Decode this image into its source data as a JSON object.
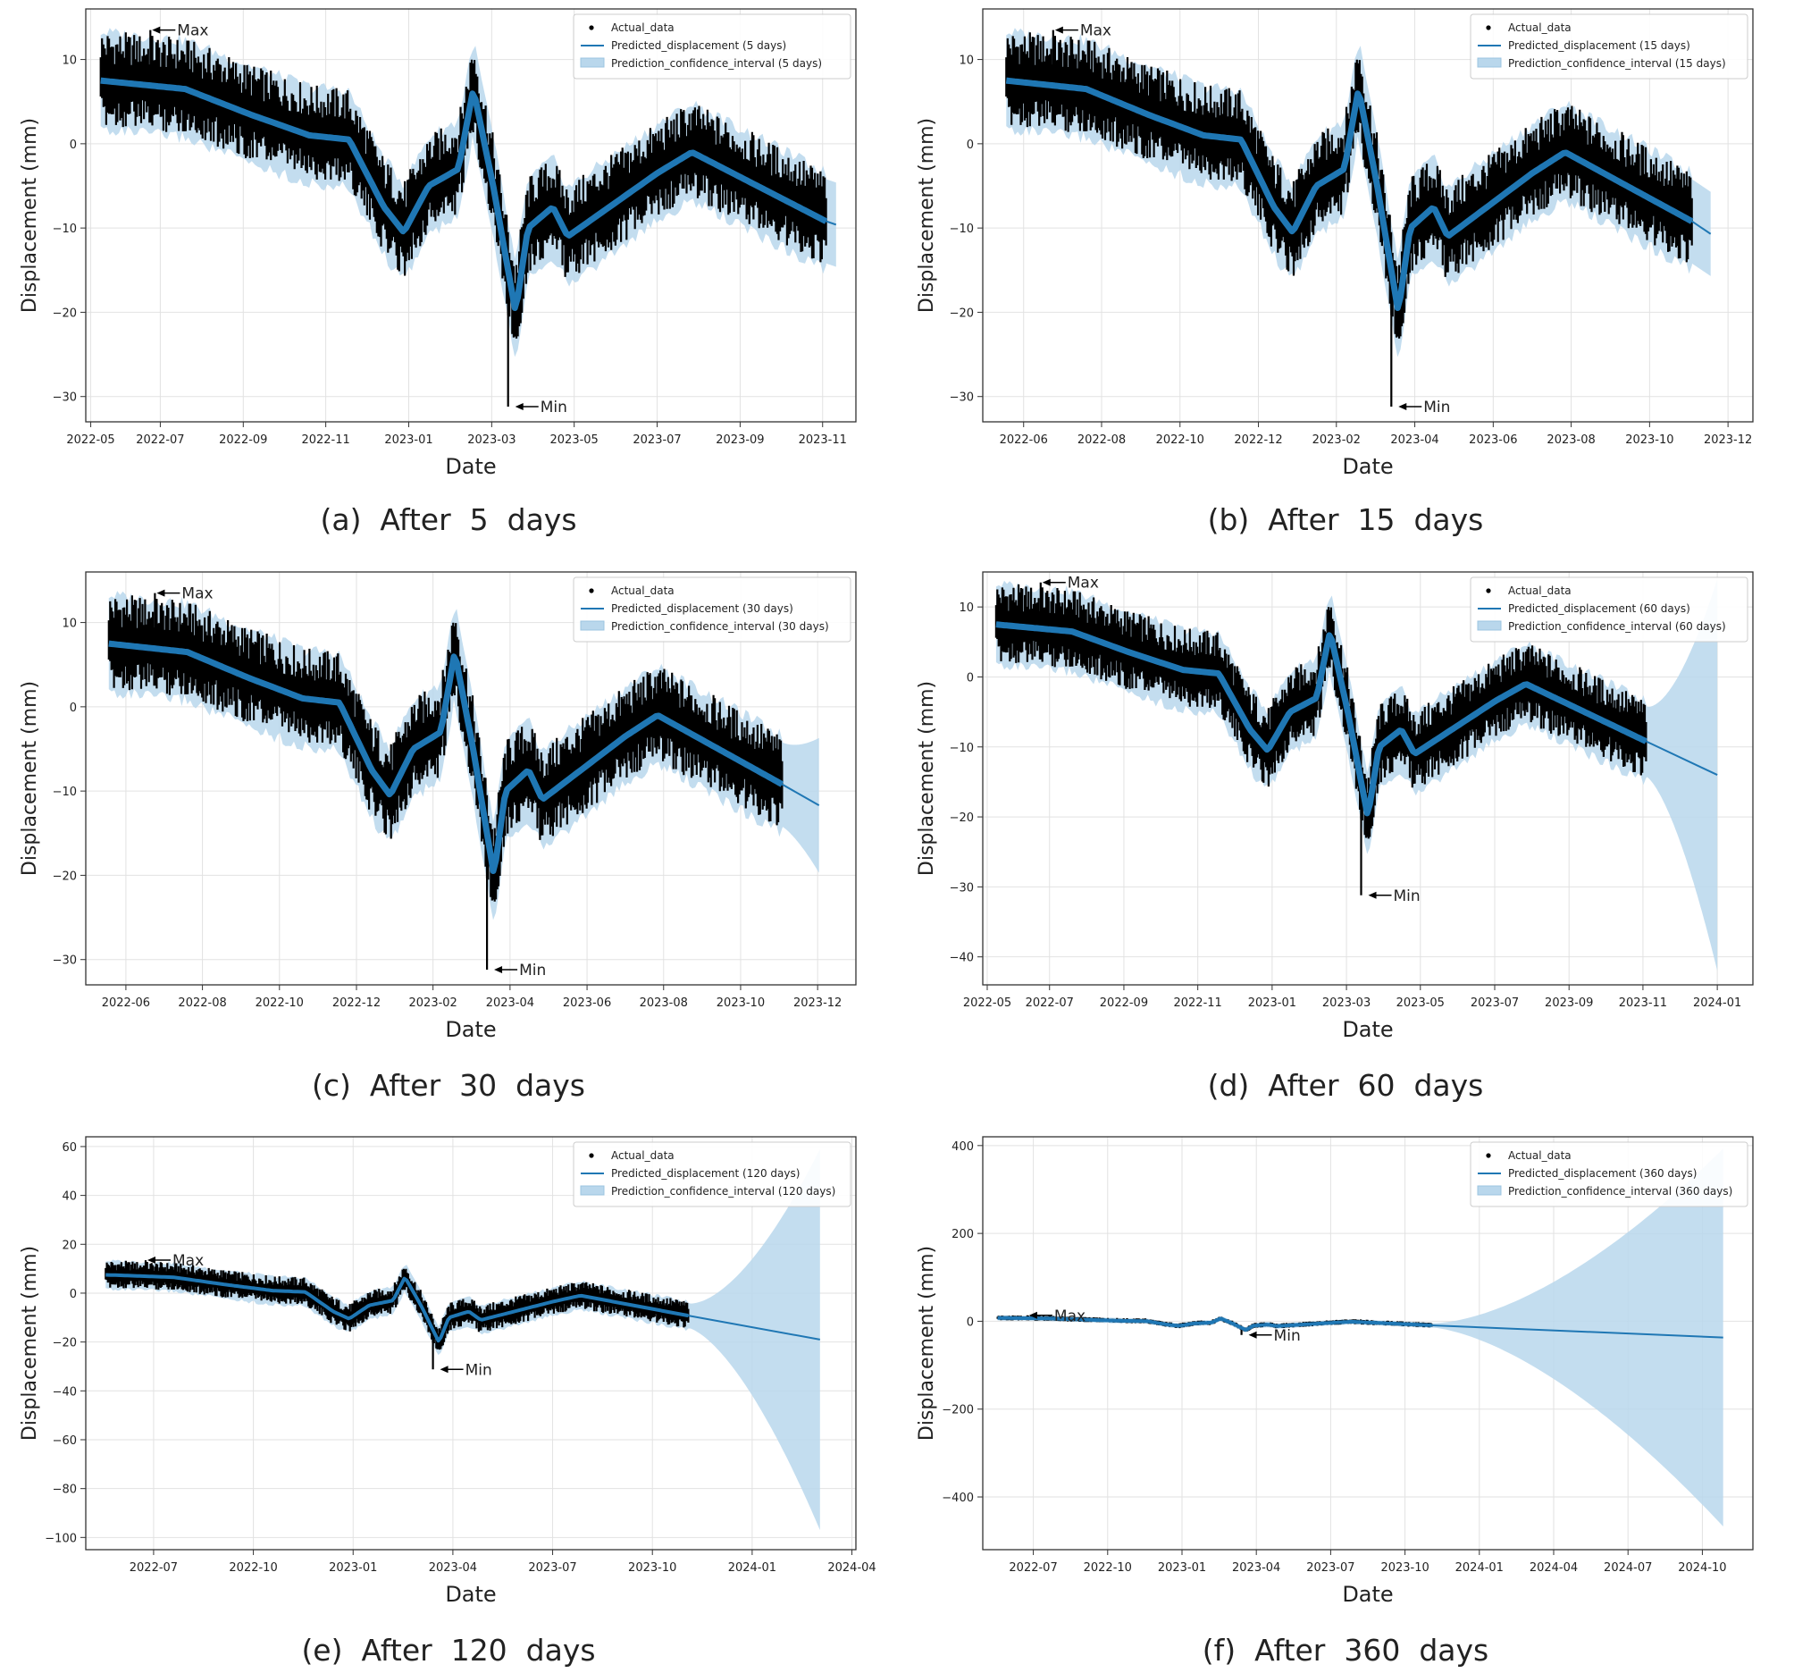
{
  "figure": {
    "xlabel": "Date",
    "ylabel": "Displacement (mm)",
    "max_label": "Max",
    "min_label": "Min",
    "actual_label": "Actual_data",
    "colors": {
      "band": "#b9d7ec",
      "line": "#1f77b4",
      "actual": "#000000",
      "grid": "#e2e2e2"
    }
  },
  "chart_data": [
    {
      "id": "a",
      "caption": "(a)  After  5  days",
      "type": "line",
      "title": "",
      "xlabel": "Date",
      "ylabel": "Displacement (mm)",
      "xlim": [
        2022.35,
        2023.9
      ],
      "ylim": [
        -33,
        16
      ],
      "xticks": [
        {
          "v": 2022.36,
          "l": "2022-05"
        },
        {
          "v": 2022.5,
          "l": "2022-07"
        },
        {
          "v": 2022.667,
          "l": "2022-09"
        },
        {
          "v": 2022.833,
          "l": "2022-11"
        },
        {
          "v": 2023.0,
          "l": "2023-01"
        },
        {
          "v": 2023.167,
          "l": "2023-03"
        },
        {
          "v": 2023.333,
          "l": "2023-05"
        },
        {
          "v": 2023.5,
          "l": "2023-07"
        },
        {
          "v": 2023.667,
          "l": "2023-09"
        },
        {
          "v": 2023.833,
          "l": "2023-11"
        }
      ],
      "yticks": [
        {
          "v": 10,
          "l": "10"
        },
        {
          "v": 0,
          "l": "0"
        },
        {
          "v": -10,
          "l": "−10"
        },
        {
          "v": -20,
          "l": "−20"
        },
        {
          "v": -30,
          "l": "−30"
        }
      ],
      "legend": {
        "actual": "Actual_data",
        "predicted": "Predicted_displacement (5 days)",
        "interval": "Prediction_confidence_interval (5 days)",
        "position": "top-right"
      },
      "forecast_end": 2023.86,
      "forecast_end_value": -9.6,
      "band_half_end": 5.0,
      "max_point": {
        "x": 2022.48,
        "y": 13.5
      },
      "min_point": {
        "x": 2023.2,
        "y": -31.2
      }
    },
    {
      "id": "b",
      "caption": "(b)  After  15  days",
      "type": "line",
      "title": "",
      "xlabel": "Date",
      "ylabel": "Displacement (mm)",
      "xlim": [
        2022.33,
        2023.97
      ],
      "ylim": [
        -33,
        16
      ],
      "xticks": [
        {
          "v": 2022.417,
          "l": "2022-06"
        },
        {
          "v": 2022.583,
          "l": "2022-08"
        },
        {
          "v": 2022.75,
          "l": "2022-10"
        },
        {
          "v": 2022.917,
          "l": "2022-12"
        },
        {
          "v": 2023.083,
          "l": "2023-02"
        },
        {
          "v": 2023.25,
          "l": "2023-04"
        },
        {
          "v": 2023.417,
          "l": "2023-06"
        },
        {
          "v": 2023.583,
          "l": "2023-08"
        },
        {
          "v": 2023.75,
          "l": "2023-10"
        },
        {
          "v": 2023.917,
          "l": "2023-12"
        }
      ],
      "yticks": [
        {
          "v": 10,
          "l": "10"
        },
        {
          "v": 0,
          "l": "0"
        },
        {
          "v": -10,
          "l": "−10"
        },
        {
          "v": -20,
          "l": "−20"
        },
        {
          "v": -30,
          "l": "−30"
        }
      ],
      "legend": {
        "actual": "Actual_data",
        "predicted": "Predicted_displacement (15 days)",
        "interval": "Prediction_confidence_interval (15 days)",
        "position": "top-right"
      },
      "forecast_end": 2023.88,
      "forecast_end_value": -10.7,
      "band_half_end": 5.0,
      "max_point": {
        "x": 2022.48,
        "y": 13.5
      },
      "min_point": {
        "x": 2023.2,
        "y": -31.2
      }
    },
    {
      "id": "c",
      "caption": "(c)  After  30  days",
      "type": "line",
      "title": "",
      "xlabel": "Date",
      "ylabel": "Displacement (mm)",
      "xlim": [
        2022.33,
        2024.0
      ],
      "ylim": [
        -33,
        16
      ],
      "xticks": [
        {
          "v": 2022.417,
          "l": "2022-06"
        },
        {
          "v": 2022.583,
          "l": "2022-08"
        },
        {
          "v": 2022.75,
          "l": "2022-10"
        },
        {
          "v": 2022.917,
          "l": "2022-12"
        },
        {
          "v": 2023.083,
          "l": "2023-02"
        },
        {
          "v": 2023.25,
          "l": "2023-04"
        },
        {
          "v": 2023.417,
          "l": "2023-06"
        },
        {
          "v": 2023.583,
          "l": "2023-08"
        },
        {
          "v": 2023.75,
          "l": "2023-10"
        },
        {
          "v": 2023.917,
          "l": "2023-12"
        }
      ],
      "yticks": [
        {
          "v": 10,
          "l": "10"
        },
        {
          "v": 0,
          "l": "0"
        },
        {
          "v": -10,
          "l": "−10"
        },
        {
          "v": -20,
          "l": "−20"
        },
        {
          "v": -30,
          "l": "−30"
        }
      ],
      "legend": {
        "actual": "Actual_data",
        "predicted": "Predicted_displacement (30 days)",
        "interval": "Prediction_confidence_interval (30 days)",
        "position": "top-right"
      },
      "forecast_end": 2023.92,
      "forecast_end_value": -11.7,
      "band_half_end": 8.0,
      "max_point": {
        "x": 2022.48,
        "y": 13.5
      },
      "min_point": {
        "x": 2023.2,
        "y": -31.2
      }
    },
    {
      "id": "d",
      "caption": "(d)  After  60  days",
      "type": "line",
      "title": "",
      "xlabel": "Date",
      "ylabel": "Displacement (mm)",
      "xlim": [
        2022.35,
        2024.08
      ],
      "ylim": [
        -44,
        15
      ],
      "xticks": [
        {
          "v": 2022.36,
          "l": "2022-05"
        },
        {
          "v": 2022.5,
          "l": "2022-07"
        },
        {
          "v": 2022.667,
          "l": "2022-09"
        },
        {
          "v": 2022.833,
          "l": "2022-11"
        },
        {
          "v": 2023.0,
          "l": "2023-01"
        },
        {
          "v": 2023.167,
          "l": "2023-03"
        },
        {
          "v": 2023.333,
          "l": "2023-05"
        },
        {
          "v": 2023.5,
          "l": "2023-07"
        },
        {
          "v": 2023.667,
          "l": "2023-09"
        },
        {
          "v": 2023.833,
          "l": "2023-11"
        },
        {
          "v": 2024.0,
          "l": "2024-01"
        }
      ],
      "yticks": [
        {
          "v": 10,
          "l": "10"
        },
        {
          "v": 0,
          "l": "0"
        },
        {
          "v": -10,
          "l": "−10"
        },
        {
          "v": -20,
          "l": "−20"
        },
        {
          "v": -30,
          "l": "−30"
        },
        {
          "v": -40,
          "l": "−40"
        }
      ],
      "legend": {
        "actual": "Actual_data",
        "predicted": "Predicted_displacement (60 days)",
        "interval": "Prediction_confidence_interval (60 days)",
        "position": "top-right"
      },
      "forecast_end": 2024.0,
      "forecast_end_value": -14.0,
      "band_half_end": 28.0,
      "max_point": {
        "x": 2022.48,
        "y": 13.5
      },
      "min_point": {
        "x": 2023.2,
        "y": -31.2
      }
    },
    {
      "id": "e",
      "caption": "(e)  After  120  days",
      "type": "line",
      "title": "",
      "xlabel": "Date",
      "ylabel": "Displacement (mm)",
      "xlim": [
        2022.33,
        2024.26
      ],
      "ylim": [
        -105,
        64
      ],
      "xticks": [
        {
          "v": 2022.5,
          "l": "2022-07"
        },
        {
          "v": 2022.75,
          "l": "2022-10"
        },
        {
          "v": 2023.0,
          "l": "2023-01"
        },
        {
          "v": 2023.25,
          "l": "2023-04"
        },
        {
          "v": 2023.5,
          "l": "2023-07"
        },
        {
          "v": 2023.75,
          "l": "2023-10"
        },
        {
          "v": 2024.0,
          "l": "2024-01"
        },
        {
          "v": 2024.25,
          "l": "2024-04"
        }
      ],
      "yticks": [
        {
          "v": 60,
          "l": "60"
        },
        {
          "v": 40,
          "l": "40"
        },
        {
          "v": 20,
          "l": "20"
        },
        {
          "v": 0,
          "l": "0"
        },
        {
          "v": -20,
          "l": "−20"
        },
        {
          "v": -40,
          "l": "−40"
        },
        {
          "v": -60,
          "l": "−60"
        },
        {
          "v": -80,
          "l": "−80"
        },
        {
          "v": -100,
          "l": "−100"
        }
      ],
      "legend": {
        "actual": "Actual_data",
        "predicted": "Predicted_displacement (120 days)",
        "interval": "Prediction_confidence_interval (120 days)",
        "position": "top-right"
      },
      "forecast_end": 2024.17,
      "forecast_end_value": -19.0,
      "band_half_end": 78.0,
      "max_point": {
        "x": 2022.48,
        "y": 13.5
      },
      "min_point": {
        "x": 2023.2,
        "y": -31.2
      }
    },
    {
      "id": "f",
      "caption": "(f)  After  360  days",
      "type": "line",
      "title": "",
      "xlabel": "Date",
      "ylabel": "Displacement (mm)",
      "xlim": [
        2022.33,
        2024.92
      ],
      "ylim": [
        -520,
        420
      ],
      "xticks": [
        {
          "v": 2022.5,
          "l": "2022-07"
        },
        {
          "v": 2022.75,
          "l": "2022-10"
        },
        {
          "v": 2023.0,
          "l": "2023-01"
        },
        {
          "v": 2023.25,
          "l": "2023-04"
        },
        {
          "v": 2023.5,
          "l": "2023-07"
        },
        {
          "v": 2023.75,
          "l": "2023-10"
        },
        {
          "v": 2024.0,
          "l": "2024-01"
        },
        {
          "v": 2024.25,
          "l": "2024-04"
        },
        {
          "v": 2024.5,
          "l": "2024-07"
        },
        {
          "v": 2024.75,
          "l": "2024-10"
        }
      ],
      "yticks": [
        {
          "v": 400,
          "l": "400"
        },
        {
          "v": 200,
          "l": "200"
        },
        {
          "v": 0,
          "l": "0"
        },
        {
          "v": -200,
          "l": "−200"
        },
        {
          "v": -400,
          "l": "−400"
        }
      ],
      "legend": {
        "actual": "Actual_data",
        "predicted": "Predicted_displacement (360 days)",
        "interval": "Prediction_confidence_interval (360 days)",
        "position": "top-right"
      },
      "forecast_end": 2024.82,
      "forecast_end_value": -37.0,
      "band_half_end": 430.0,
      "max_point": {
        "x": 2022.48,
        "y": 13.5
      },
      "min_point": {
        "x": 2023.2,
        "y": -31.2
      }
    }
  ],
  "series_shape": {
    "start": 2022.38,
    "end": 2023.84,
    "trend": [
      [
        2022.38,
        7.5
      ],
      [
        2022.55,
        6.5
      ],
      [
        2022.68,
        3.5
      ],
      [
        2022.8,
        1.0
      ],
      [
        2022.88,
        0.5
      ],
      [
        2022.95,
        -7.5
      ],
      [
        2022.99,
        -10.5
      ],
      [
        2023.04,
        -5.0
      ],
      [
        2023.1,
        -3.0
      ],
      [
        2023.13,
        6.5
      ],
      [
        2023.17,
        -5.0
      ],
      [
        2023.215,
        -20.0
      ],
      [
        2023.24,
        -10.0
      ],
      [
        2023.29,
        -7.5
      ],
      [
        2023.32,
        -11.0
      ],
      [
        2023.5,
        -3.5
      ],
      [
        2023.57,
        -1.0
      ],
      [
        2023.84,
        -9.2
      ]
    ],
    "envelope_upper": 4.5,
    "envelope_lower": 4.0,
    "band_half": 5.0
  }
}
